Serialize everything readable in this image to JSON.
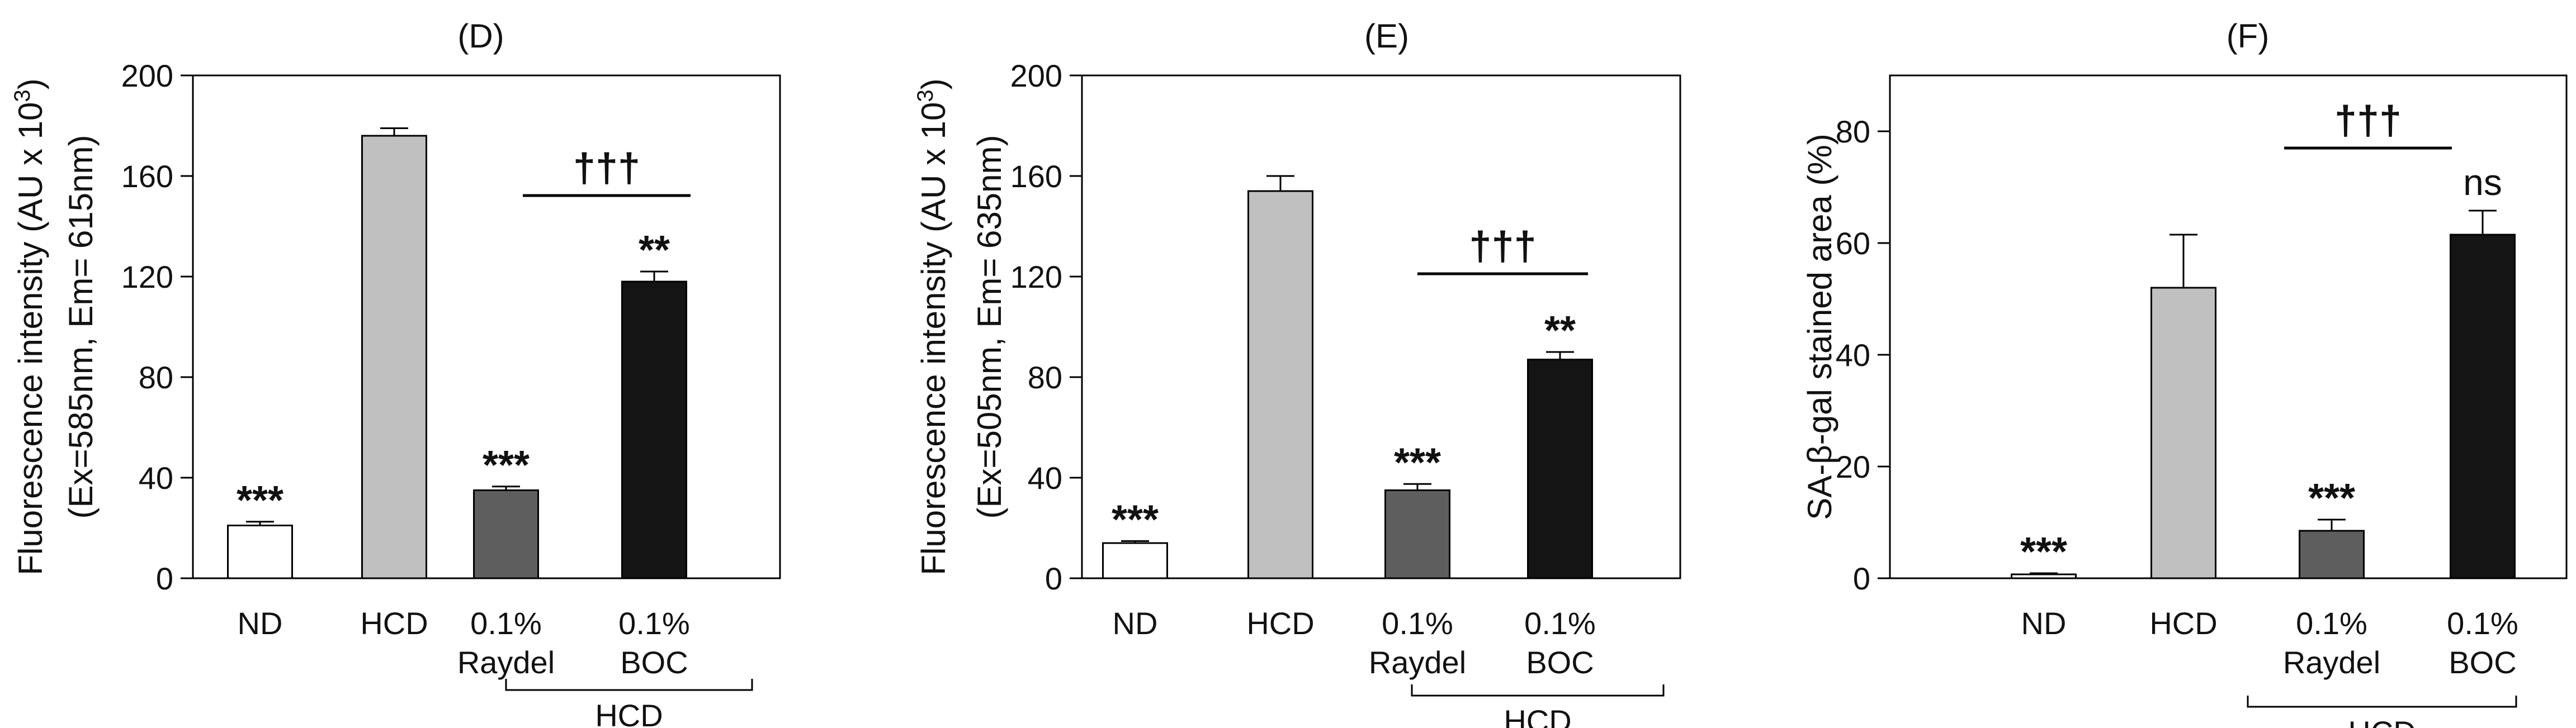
{
  "colors": {
    "nd": "#ffffff",
    "hcd": "#c0c0c0",
    "raydel": "#5e5e5e",
    "boc": "#141414",
    "axis": "#000000"
  },
  "chart_data": [
    {
      "panel": "(D)",
      "type": "bar",
      "ylabel_line1": "Fluorescence intensity (AU x 10",
      "ylabel_sup": "3",
      "ylabel_close": ")",
      "ylabel_line2": "(Ex=585nm, Em= 615nm)",
      "ylim": [
        0,
        200
      ],
      "yticks": [
        0,
        40,
        80,
        120,
        160,
        200
      ],
      "categories": [
        {
          "line1": "ND",
          "line2": ""
        },
        {
          "line1": "HCD",
          "line2": ""
        },
        {
          "line1": "0.1%",
          "line2": "Raydel"
        },
        {
          "line1": "0.1%",
          "line2": "BOC"
        }
      ],
      "values": [
        21,
        176,
        35,
        118
      ],
      "errors": [
        1.5,
        3,
        1.5,
        4
      ],
      "significance": [
        "***",
        "",
        "***",
        "**"
      ],
      "bracket_label": "†††",
      "group_label": "HCD"
    },
    {
      "panel": "(E)",
      "type": "bar",
      "ylabel_line1": "Fluorescence intensity (AU x 10",
      "ylabel_sup": "3",
      "ylabel_close": ")",
      "ylabel_line2": "(Ex=505nm, Em= 635nm)",
      "ylim": [
        0,
        200
      ],
      "yticks": [
        0,
        40,
        80,
        120,
        160,
        200
      ],
      "categories": [
        {
          "line1": "ND",
          "line2": ""
        },
        {
          "line1": "HCD",
          "line2": ""
        },
        {
          "line1": "0.1%",
          "line2": "Raydel"
        },
        {
          "line1": "0.1%",
          "line2": "BOC"
        }
      ],
      "values": [
        14,
        154,
        35,
        87
      ],
      "errors": [
        0.8,
        6,
        2.5,
        3
      ],
      "significance": [
        "***",
        "",
        "***",
        "**"
      ],
      "bracket_label": "†††",
      "group_label": "HCD"
    },
    {
      "panel": "(F)",
      "type": "bar",
      "ylabel_line1": "SA-β-gal stained area (%)",
      "ylabel_sup": "",
      "ylabel_close": "",
      "ylabel_line2": "",
      "ylim": [
        0,
        90
      ],
      "yticks": [
        0,
        20,
        40,
        60,
        80
      ],
      "categories": [
        {
          "line1": "ND",
          "line2": ""
        },
        {
          "line1": "HCD",
          "line2": ""
        },
        {
          "line1": "0.1%",
          "line2": "Raydel"
        },
        {
          "line1": "0.1%",
          "line2": "BOC"
        }
      ],
      "values": [
        0.7,
        52,
        8.5,
        61.5
      ],
      "errors": [
        0.2,
        9.5,
        2,
        4.3
      ],
      "significance": [
        "***",
        "",
        "***",
        "ns"
      ],
      "bracket_label": "†††",
      "group_label": "HCD"
    }
  ]
}
